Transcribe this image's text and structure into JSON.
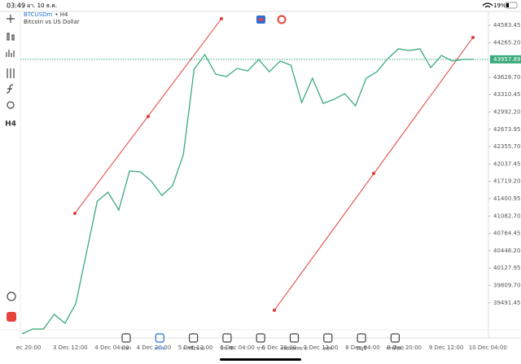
{
  "status": {
    "time": "03:49",
    "date": "อา. 10 ธ.ค.",
    "battery": "19%"
  },
  "symbol": {
    "code": "BTCUSDm",
    "timeframe": "• H4",
    "description": "Bitcoin vs US Dollar"
  },
  "toolbar": {
    "timeframe": "H4"
  },
  "chart_data": {
    "type": "line",
    "series": [
      {
        "name": "BTCUSDm",
        "color": "#3aaa7a",
        "values": [
          38921,
          39010,
          39010,
          39280,
          39115,
          39474,
          40415,
          41356,
          41520,
          41192,
          41909,
          41894,
          41729,
          41461,
          41640,
          42208,
          43776,
          44045,
          43687,
          43642,
          43791,
          43746,
          43956,
          43731,
          43926,
          43851,
          43164,
          43612,
          43149,
          43223,
          43328,
          43104,
          43612,
          43731,
          43970,
          44150,
          44120,
          44150,
          43806,
          44030,
          43926,
          43956,
          43957.89
        ]
      }
    ],
    "ylim": [
      38846,
      44897
    ],
    "yticks": [
      44583.45,
      {
        "value": 44265.2,
        "label": "44265.20"
      },
      {
        "value": 43628.7,
        "label": "43628.70"
      },
      43310.45,
      {
        "value": 42992.2,
        "label": "42992.20"
      },
      42673.95,
      {
        "value": 42355.7,
        "label": "42355.70"
      },
      42037.45,
      {
        "value": 41719.2,
        "label": "41719.20"
      },
      41400.95,
      {
        "value": 41082.7,
        "label": "41082.70"
      },
      40764.45,
      {
        "value": 40446.2,
        "label": "40446.20"
      },
      40127.95,
      {
        "value": 39809.7,
        "label": "39809.70"
      },
      39491.45
    ],
    "xtick_labels": [
      "ec 20:00",
      "3 Dec 12:00",
      "4 Dec 04:00",
      "4 Dec 20:00",
      "5 Dec 12:00",
      "6 Dec 04:00",
      "6 Dec 20:00",
      "7 Dec 12:00",
      "8 Dec 04:00",
      "8 Dec 20:00",
      "9 Dec 12:00",
      "10 Dec 04:00"
    ]
  },
  "tabs": [
    "ราคา",
    "กราฟ",
    "การซื้อขาย",
    "ประวัติ",
    "ข่าว",
    "กล่องจดหมาย",
    "แชท",
    "บัญชี",
    "การตั้งค่า"
  ]
}
